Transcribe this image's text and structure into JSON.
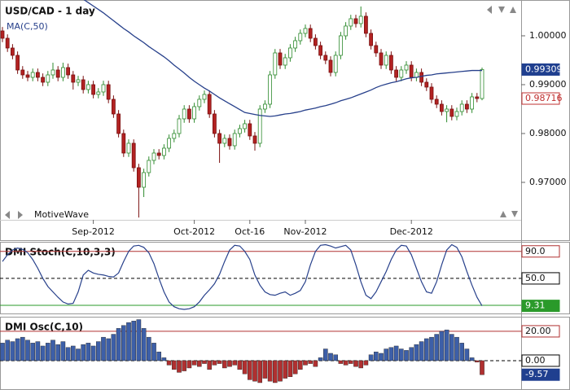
{
  "chart_data": [
    {
      "type": "candlestick",
      "title": "USD/CAD - 1 day",
      "annotation": "MotiveWave",
      "categories": [
        null,
        null,
        null,
        null,
        null,
        null,
        null,
        null,
        null,
        null,
        null,
        null,
        null,
        null,
        null,
        null,
        null,
        null,
        "Sep-2012",
        null,
        null,
        null,
        null,
        null,
        null,
        null,
        null,
        null,
        null,
        null,
        null,
        null,
        null,
        null,
        null,
        null,
        null,
        null,
        "Oct-2012",
        null,
        null,
        null,
        null,
        null,
        null,
        null,
        null,
        null,
        null,
        "Oct-16",
        null,
        null,
        null,
        null,
        null,
        null,
        null,
        null,
        null,
        null,
        "Nov-2012",
        null,
        null,
        null,
        null,
        null,
        null,
        null,
        null,
        null,
        null,
        null,
        null,
        null,
        null,
        null,
        null,
        null,
        null,
        null,
        null,
        "Dec-2012",
        null,
        null,
        null,
        null,
        null,
        null,
        null,
        null,
        null,
        null,
        null,
        null,
        null,
        null
      ],
      "ohlc": [
        [
          1.001,
          1.0018,
          0.9987,
          0.9995
        ],
        [
          0.9995,
          1.0003,
          0.9967,
          0.9975
        ],
        [
          0.9975,
          0.9983,
          0.9952,
          0.996
        ],
        [
          0.996,
          0.9968,
          0.9922,
          0.993
        ],
        [
          0.993,
          0.9938,
          0.9912,
          0.992
        ],
        [
          0.992,
          0.9928,
          0.9907,
          0.9915
        ],
        [
          0.9915,
          0.9933,
          0.9907,
          0.9925
        ],
        [
          0.9925,
          0.9933,
          0.9907,
          0.9915
        ],
        [
          0.9915,
          0.9923,
          0.9897,
          0.9905
        ],
        [
          0.9905,
          0.9928,
          0.9897,
          0.992
        ],
        [
          0.992,
          0.9945,
          0.9912,
          0.993
        ],
        [
          0.993,
          0.9938,
          0.9907,
          0.9915
        ],
        [
          0.9915,
          0.9945,
          0.9907,
          0.9935
        ],
        [
          0.9935,
          0.9943,
          0.9912,
          0.992
        ],
        [
          0.992,
          0.9928,
          0.989,
          0.9905
        ],
        [
          0.9905,
          0.9918,
          0.9897,
          0.991
        ],
        [
          0.991,
          0.9918,
          0.9882,
          0.989
        ],
        [
          0.989,
          0.9908,
          0.9882,
          0.99
        ],
        [
          0.99,
          0.9908,
          0.9872,
          0.988
        ],
        [
          0.988,
          0.9893,
          0.9872,
          0.9885
        ],
        [
          0.9885,
          0.9908,
          0.9877,
          0.99
        ],
        [
          0.99,
          0.9908,
          0.9862,
          0.987
        ],
        [
          0.987,
          0.9878,
          0.9832,
          0.984
        ],
        [
          0.984,
          0.9848,
          0.9792,
          0.98
        ],
        [
          0.98,
          0.9808,
          0.9752,
          0.976
        ],
        [
          0.976,
          0.9788,
          0.9752,
          0.978
        ],
        [
          0.978,
          0.9788,
          0.9722,
          0.973
        ],
        [
          0.973,
          0.9738,
          0.9628,
          0.969
        ],
        [
          0.969,
          0.9728,
          0.967,
          0.972
        ],
        [
          0.972,
          0.9753,
          0.9712,
          0.9745
        ],
        [
          0.9745,
          0.9768,
          0.9737,
          0.976
        ],
        [
          0.976,
          0.9768,
          0.9747,
          0.9755
        ],
        [
          0.9755,
          0.9778,
          0.9747,
          0.977
        ],
        [
          0.977,
          0.9798,
          0.9762,
          0.979
        ],
        [
          0.979,
          0.9808,
          0.9782,
          0.98
        ],
        [
          0.98,
          0.9838,
          0.9792,
          0.983
        ],
        [
          0.983,
          0.9858,
          0.9822,
          0.985
        ],
        [
          0.985,
          0.9858,
          0.9822,
          0.983
        ],
        [
          0.983,
          0.9863,
          0.9822,
          0.9855
        ],
        [
          0.9855,
          0.9878,
          0.9847,
          0.987
        ],
        [
          0.987,
          0.9888,
          0.9862,
          0.988
        ],
        [
          0.988,
          0.9888,
          0.9832,
          0.984
        ],
        [
          0.984,
          0.9848,
          0.9792,
          0.98
        ],
        [
          0.98,
          0.9808,
          0.974,
          0.978
        ],
        [
          0.978,
          0.9798,
          0.9772,
          0.979
        ],
        [
          0.979,
          0.9798,
          0.9767,
          0.9775
        ],
        [
          0.9775,
          0.9808,
          0.9767,
          0.98
        ],
        [
          0.98,
          0.9818,
          0.9792,
          0.981
        ],
        [
          0.981,
          0.9828,
          0.9802,
          0.982
        ],
        [
          0.982,
          0.9828,
          0.9787,
          0.9795
        ],
        [
          0.9795,
          0.9803,
          0.9765,
          0.978
        ],
        [
          0.978,
          0.9858,
          0.9772,
          0.985
        ],
        [
          0.985,
          0.9868,
          0.9842,
          0.986
        ],
        [
          0.986,
          0.9928,
          0.9852,
          0.992
        ],
        [
          0.992,
          0.9973,
          0.9912,
          0.9965
        ],
        [
          0.9965,
          0.9973,
          0.9932,
          0.994
        ],
        [
          0.994,
          0.9963,
          0.9932,
          0.9955
        ],
        [
          0.9955,
          0.9983,
          0.9947,
          0.9975
        ],
        [
          0.9975,
          0.9998,
          0.9967,
          0.999
        ],
        [
          0.999,
          1.0013,
          0.9982,
          1.0005
        ],
        [
          1.0005,
          1.0023,
          0.9997,
          1.0015
        ],
        [
          1.0015,
          1.0023,
          0.9987,
          0.9995
        ],
        [
          0.9995,
          1.0003,
          0.9972,
          0.998
        ],
        [
          0.998,
          0.9988,
          0.9952,
          0.996
        ],
        [
          0.996,
          0.9968,
          0.9942,
          0.995
        ],
        [
          0.995,
          0.9958,
          0.9917,
          0.9925
        ],
        [
          0.9925,
          0.9968,
          0.9917,
          0.996
        ],
        [
          0.996,
          1.0008,
          0.9952,
          1.0
        ],
        [
          1.0,
          1.0028,
          0.9992,
          1.002
        ],
        [
          1.002,
          1.0043,
          1.0012,
          1.0035
        ],
        [
          1.0035,
          1.0043,
          1.0017,
          1.0025
        ],
        [
          1.0025,
          1.006,
          1.0017,
          1.004
        ],
        [
          1.004,
          1.0048,
          0.9997,
          1.0005
        ],
        [
          1.0005,
          1.0013,
          0.9972,
          0.998
        ],
        [
          0.998,
          0.9988,
          0.9957,
          0.9965
        ],
        [
          0.9965,
          0.9973,
          0.9932,
          0.994
        ],
        [
          0.994,
          0.9968,
          0.9932,
          0.996
        ],
        [
          0.996,
          0.9968,
          0.9922,
          0.993
        ],
        [
          0.993,
          0.9938,
          0.9907,
          0.9915
        ],
        [
          0.9915,
          0.9938,
          0.9907,
          0.993
        ],
        [
          0.993,
          0.9948,
          0.9922,
          0.994
        ],
        [
          0.994,
          0.9948,
          0.9907,
          0.9915
        ],
        [
          0.9915,
          0.9933,
          0.9907,
          0.9925
        ],
        [
          0.9925,
          0.9933,
          0.9897,
          0.9905
        ],
        [
          0.9905,
          0.9913,
          0.9887,
          0.9895
        ],
        [
          0.9895,
          0.9903,
          0.9862,
          0.987
        ],
        [
          0.987,
          0.9878,
          0.9852,
          0.986
        ],
        [
          0.986,
          0.9868,
          0.9837,
          0.9845
        ],
        [
          0.9845,
          0.9858,
          0.9823,
          0.985
        ],
        [
          0.985,
          0.9858,
          0.9827,
          0.9835
        ],
        [
          0.9835,
          0.9853,
          0.9827,
          0.9845
        ],
        [
          0.9845,
          0.9868,
          0.9837,
          0.986
        ],
        [
          0.986,
          0.9868,
          0.9842,
          0.985
        ],
        [
          0.985,
          0.9883,
          0.9842,
          0.9875
        ],
        [
          0.9875,
          0.9883,
          0.9864,
          0.98716
        ],
        [
          0.98716,
          0.9935,
          0.9868,
          0.99309
        ]
      ],
      "up_color": "#ffffff",
      "up_border": "#2e8b2e",
      "down_color": "#b22222",
      "down_border": "#7a1010",
      "overlay": {
        "name": "MA(C,50)",
        "color": "#27408b",
        "values": [
          null,
          null,
          null,
          null,
          null,
          null,
          null,
          null,
          null,
          null,
          null,
          null,
          null,
          null,
          null,
          null,
          1.0075,
          1.0068,
          1.0061,
          1.0054,
          1.0047,
          1.0039,
          1.0031,
          1.0023,
          1.0015,
          1.0008,
          1.0,
          0.9993,
          0.9986,
          0.9978,
          0.9971,
          0.9964,
          0.9957,
          0.9949,
          0.994,
          0.9932,
          0.9924,
          0.9915,
          0.9907,
          0.99,
          0.9893,
          0.9887,
          0.988,
          0.9873,
          0.9867,
          0.9861,
          0.9855,
          0.9849,
          0.9843,
          0.9841,
          0.9839,
          0.9837,
          0.9836,
          0.9835,
          0.9836,
          0.9838,
          0.984,
          0.9841,
          0.9843,
          0.9845,
          0.9848,
          0.985,
          0.9852,
          0.9855,
          0.9857,
          0.986,
          0.9863,
          0.9867,
          0.987,
          0.9873,
          0.9877,
          0.9881,
          0.9885,
          0.9889,
          0.9894,
          0.9898,
          0.9901,
          0.9904,
          0.9906,
          0.9909,
          0.9912,
          0.9914,
          0.9915,
          0.9917,
          0.9919,
          0.992,
          0.9922,
          0.9923,
          0.9924,
          0.9925,
          0.9926,
          0.9927,
          0.9928,
          0.9929,
          0.9929,
          0.9929
        ]
      },
      "last_close_color": "#1f3f8f",
      "last_open_color": "#c03030",
      "ylim": [
        0.96233,
        1.00733
      ],
      "yticks": [
        {
          "value": 1.0,
          "label": "1.00000"
        },
        {
          "value": 0.99,
          "label": "0.99000"
        },
        {
          "value": 0.98,
          "label": "0.98000"
        },
        {
          "value": 0.97,
          "label": "0.97000"
        }
      ]
    },
    {
      "type": "line",
      "title": "DMI Stoch(C,10,3,3)",
      "color": "#27408b",
      "last_color": "#2a9a2a",
      "values": [
        75,
        85,
        92,
        95,
        93,
        88,
        78,
        65,
        50,
        38,
        30,
        22,
        15,
        12,
        13,
        30,
        55,
        62,
        58,
        56,
        55,
        53,
        52,
        58,
        75,
        90,
        98,
        99,
        96,
        88,
        72,
        50,
        30,
        15,
        8,
        5,
        4,
        5,
        8,
        15,
        25,
        33,
        42,
        56,
        75,
        92,
        99,
        98,
        90,
        78,
        55,
        40,
        30,
        26,
        25,
        28,
        30,
        25,
        28,
        32,
        45,
        70,
        90,
        99,
        100,
        98,
        95,
        97,
        99,
        92,
        70,
        45,
        25,
        20,
        30,
        45,
        60,
        78,
        92,
        99,
        98,
        85,
        65,
        45,
        30,
        28,
        45,
        70,
        92,
        100,
        96,
        82,
        60,
        40,
        22,
        9.31
      ],
      "ylim": [
        -2,
        103
      ],
      "yticks": [
        {
          "value": 90,
          "label": "90.0"
        },
        {
          "value": 50,
          "label": "50.0"
        }
      ],
      "levels": [
        90,
        50,
        10
      ],
      "level_colors": [
        "#b03030",
        "#000000",
        "#2a9a2a"
      ],
      "level_dashed": [
        false,
        true,
        false
      ]
    },
    {
      "type": "bar",
      "title": "DMI Osc(C,10)",
      "positive_color": "#3d5fa8",
      "negative_color": "#b03030",
      "last_color": "#1f3f8f",
      "values": [
        12,
        14,
        13,
        15,
        16,
        14,
        12,
        13,
        10,
        12,
        14,
        11,
        13,
        9,
        10,
        8,
        11,
        12,
        10,
        13,
        16,
        15,
        18,
        22,
        24,
        26,
        27,
        28,
        22,
        16,
        12,
        6,
        2,
        -3,
        -6,
        -8,
        -7,
        -5,
        -3,
        -4,
        -2,
        -6,
        -3,
        -2,
        -5,
        -4,
        -3,
        -6,
        -9,
        -13,
        -14,
        -15,
        -12,
        -14,
        -15,
        -14,
        -12,
        -11,
        -9,
        -6,
        -3,
        -2,
        -4,
        2,
        8,
        5,
        4,
        -2,
        -3,
        -2,
        -4,
        -5,
        -3,
        4,
        6,
        5,
        8,
        9,
        10,
        8,
        7,
        9,
        11,
        13,
        15,
        16,
        18,
        20,
        21,
        18,
        16,
        12,
        8,
        2,
        -1,
        -9.57
      ],
      "ylim": [
        -20,
        29.4
      ],
      "yticks": [
        {
          "value": 20,
          "label": "20.00"
        },
        {
          "value": 0,
          "label": "0.00"
        }
      ],
      "levels": [
        20,
        0
      ],
      "level_colors": [
        "#b03030",
        "#000000"
      ],
      "level_dashed": [
        false,
        true
      ]
    }
  ]
}
